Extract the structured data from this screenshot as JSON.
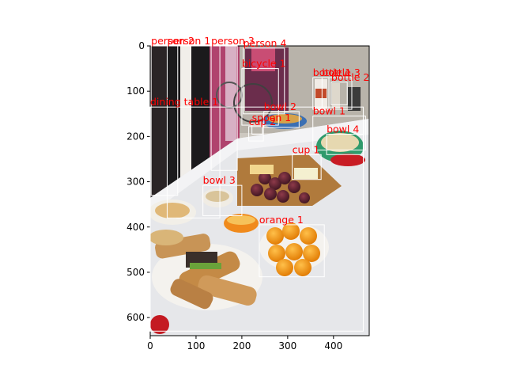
{
  "axes": {
    "x_ticks": [
      0,
      100,
      200,
      300,
      400
    ],
    "y_ticks": [
      0,
      100,
      200,
      300,
      400,
      500,
      600
    ],
    "image_width": 478,
    "image_height": 640
  },
  "scene": {
    "description_colors": {
      "sky": "#d9d4cc",
      "cloth": "#e8e8ea",
      "plate": "#f4f2ee",
      "bread": "#c89456",
      "orange": "#f39a1c"
    }
  },
  "detections": [
    {
      "label": "person 2",
      "x0": 2,
      "y0": 0,
      "x1": 60,
      "y1": 330
    },
    {
      "label": "person 1",
      "x0": 37,
      "y0": 0,
      "x1": 152,
      "y1": 380
    },
    {
      "label": "person 3",
      "x0": 133,
      "y0": 0,
      "x1": 190,
      "y1": 275
    },
    {
      "label": "person 4",
      "x0": 203,
      "y0": 5,
      "x1": 293,
      "y1": 150
    },
    {
      "label": "bicycle 1",
      "x0": 200,
      "y0": 50,
      "x1": 280,
      "y1": 175
    },
    {
      "label": "bottle 1",
      "x0": 355,
      "y0": 70,
      "x1": 390,
      "y1": 140
    },
    {
      "label": "bottle 3",
      "x0": 375,
      "y0": 70,
      "x1": 440,
      "y1": 140
    },
    {
      "label": "bottle 2",
      "x0": 395,
      "y0": 80,
      "x1": 430,
      "y1": 130
    },
    {
      "label": "dining table 1",
      "x0": 0,
      "y0": 135,
      "x1": 465,
      "y1": 630
    },
    {
      "label": "bowl 2",
      "x0": 248,
      "y0": 145,
      "x1": 325,
      "y1": 180
    },
    {
      "label": "bowl 1",
      "x0": 355,
      "y0": 155,
      "x1": 470,
      "y1": 230
    },
    {
      "label": "spoon 1",
      "x0": 222,
      "y0": 170,
      "x1": 245,
      "y1": 195
    },
    {
      "label": "cup 2",
      "x0": 215,
      "y0": 178,
      "x1": 247,
      "y1": 210
    },
    {
      "label": "cup 1",
      "x0": 310,
      "y0": 240,
      "x1": 373,
      "y1": 295
    },
    {
      "label": "bowl 4",
      "x0": 385,
      "y0": 195,
      "x1": 465,
      "y1": 240
    },
    {
      "label": "bowl 3",
      "x0": 115,
      "y0": 308,
      "x1": 200,
      "y1": 375
    },
    {
      "label": "orange 1",
      "x0": 238,
      "y0": 395,
      "x1": 380,
      "y1": 510
    }
  ]
}
